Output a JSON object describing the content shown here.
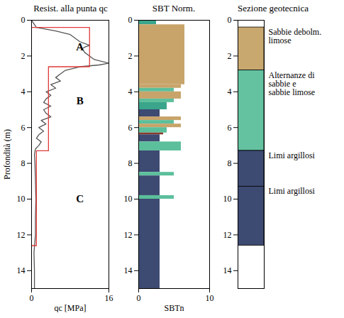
{
  "chart_data": [
    {
      "type": "line",
      "title": "Resist. alla punta qc",
      "x_label": "qc [MPa]",
      "y_label": "Profondità (m)",
      "xlim": [
        0,
        16
      ],
      "xticks": [
        0,
        16
      ],
      "ylim": [
        0,
        15
      ],
      "yticks": [
        0,
        2,
        4,
        6,
        8,
        10,
        12,
        14
      ],
      "series": [
        {
          "color": "#555555",
          "line_style": "solid",
          "x": [
            0,
            1,
            5,
            8,
            9,
            10,
            12,
            11,
            10.5,
            11,
            12,
            13,
            16,
            14,
            10,
            7,
            6,
            5,
            6,
            4,
            5,
            3,
            4,
            3,
            2.5,
            4,
            2.5,
            3,
            4,
            2,
            3,
            1.5,
            2.5,
            1.5,
            1,
            2,
            1.5,
            0.8,
            0.6,
            0.7,
            0.8,
            0.9,
            0.8,
            0.8,
            0.5,
            0.6,
            0.6
          ],
          "y": [
            0,
            0.4,
            0.6,
            0.8,
            1.0,
            1.2,
            1.4,
            1.5,
            1.6,
            1.8,
            2.0,
            2.2,
            2.4,
            2.5,
            2.6,
            2.8,
            3.0,
            3.2,
            3.4,
            3.6,
            3.8,
            4.0,
            4.2,
            4.4,
            4.6,
            4.8,
            5.0,
            5.2,
            5.4,
            5.6,
            5.8,
            6.0,
            6.2,
            6.4,
            6.6,
            6.8,
            7.0,
            7.2,
            7.5,
            8,
            9,
            10,
            11,
            12,
            13,
            14,
            15
          ]
        },
        {
          "color": "#e03a3a",
          "line_style": "solid",
          "x": [
            0,
            12,
            12,
            3.5,
            3.5,
            1,
            1,
            0
          ],
          "y": [
            0.4,
            0.4,
            2.6,
            2.6,
            7.3,
            7.3,
            12.6,
            12.6
          ]
        }
      ],
      "annotations": [
        {
          "text": "A",
          "x": 10,
          "y": 1.5
        },
        {
          "text": "B",
          "x": 10,
          "y": 4.5
        },
        {
          "text": "C",
          "x": 10,
          "y": 10
        }
      ]
    },
    {
      "type": "bar",
      "orientation": "horizontal",
      "title": "SBT Norm.",
      "x_label": "SBTn",
      "xlim": [
        0,
        10
      ],
      "xticks": [
        0,
        10
      ],
      "ylim": [
        0,
        15
      ],
      "yticks": [
        0,
        2,
        4,
        6,
        8,
        10,
        12,
        14
      ],
      "depth_from": [
        0.0,
        0.25,
        3.6,
        3.8,
        4.0,
        4.4,
        4.6,
        5.0,
        5.4,
        5.6,
        5.8,
        6.0,
        6.3,
        6.4,
        6.8,
        7.3,
        8.5,
        8.7,
        9.8,
        10.0
      ],
      "depth_to": [
        0.25,
        3.6,
        3.8,
        4.0,
        4.4,
        4.6,
        5.0,
        5.4,
        5.6,
        5.8,
        6.0,
        6.3,
        6.4,
        6.8,
        7.3,
        8.5,
        8.7,
        9.8,
        10.0,
        15.0
      ],
      "values": [
        2.5,
        6.5,
        6.0,
        5.0,
        6.0,
        5.0,
        4.0,
        3.0,
        6.0,
        5.0,
        6.0,
        4.0,
        3.5,
        3.0,
        6.0,
        3.0,
        5.0,
        3.0,
        5.0,
        3.0
      ],
      "colors": [
        "#3aa58a",
        "#c8a46a",
        "#c8a46a",
        "#5cbf9b",
        "#c8a46a",
        "#5cbf9b",
        "#3aa58a",
        "#3d4a72",
        "#c8a46a",
        "#5cbf9b",
        "#c8a46a",
        "#5cbf9b",
        "#8b3a2a",
        "#3d4a72",
        "#5cbf9b",
        "#3d4a72",
        "#5cbf9b",
        "#3d4a72",
        "#5cbf9b",
        "#3d4a72"
      ]
    },
    {
      "type": "column",
      "title": "Sezione geotecnica",
      "tick_labels": "y",
      "ylim": [
        0,
        15
      ],
      "yticks": [
        0,
        2,
        4,
        6,
        8,
        10,
        12,
        14
      ],
      "layers": [
        {
          "label": "Sabbie debolm. limose",
          "top": 0.4,
          "bottom": 2.8,
          "color": "#c9a86f"
        },
        {
          "label": "Alternanze di sabbie e sabbie limose",
          "top": 2.8,
          "bottom": 7.3,
          "color": "#64c2a0"
        },
        {
          "label": "Limi argillosi",
          "top": 7.3,
          "bottom": 9.3,
          "color": "#3d4a72"
        },
        {
          "label": "Limi argillosi",
          "top": 9.3,
          "bottom": 12.6,
          "color": "#3d4a72"
        }
      ]
    }
  ]
}
